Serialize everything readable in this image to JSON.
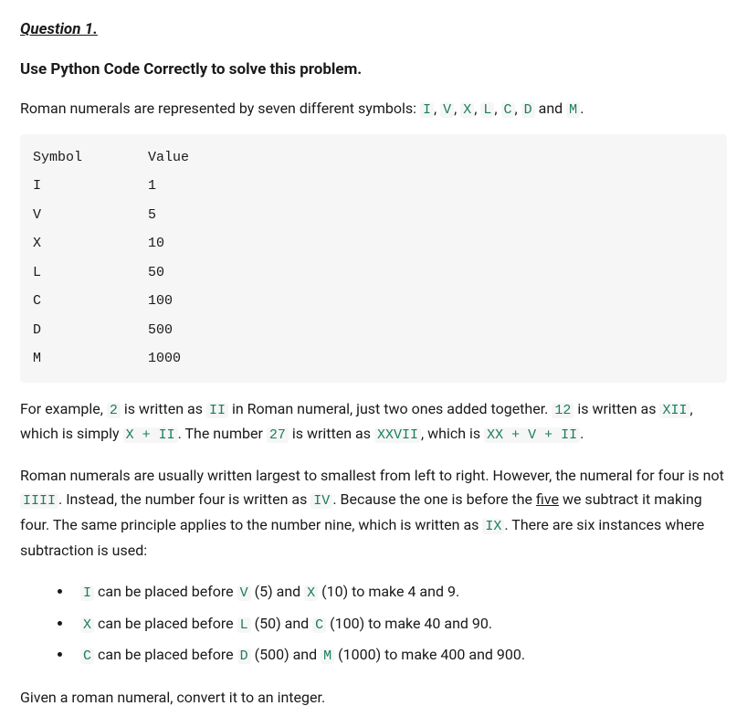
{
  "question_label": "Question 1.",
  "subtitle": "Use Python Code Correctly to solve this problem.",
  "intro_pre": "Roman numerals are represented by seven different symbols: ",
  "intro_symbols": [
    "I",
    "V",
    "X",
    "L",
    "C",
    "D",
    "M"
  ],
  "intro_sep_comma": ", ",
  "intro_and": " and ",
  "intro_post": ".",
  "table": {
    "header_symbol": "Symbol",
    "header_value": "Value",
    "rows": [
      {
        "sym": "I",
        "val": "1"
      },
      {
        "sym": "V",
        "val": "5"
      },
      {
        "sym": "X",
        "val": "10"
      },
      {
        "sym": "L",
        "val": "50"
      },
      {
        "sym": "C",
        "val": "100"
      },
      {
        "sym": "D",
        "val": "500"
      },
      {
        "sym": "M",
        "val": "1000"
      }
    ],
    "col1_width": 14
  },
  "p1": {
    "t0": "For example, ",
    "c0": "2",
    "t1": " is written as ",
    "c1": "II",
    "t2": " in Roman numeral, just two ones added together. ",
    "c2": "12",
    "t3": " is written as ",
    "c3": "XII",
    "t4": ", which is simply ",
    "c4": "X + II",
    "t5": ". The number ",
    "c5": "27",
    "t6": " is written as ",
    "c6": "XXVII",
    "t7": ", which is ",
    "c7": "XX + V + II",
    "t8": "."
  },
  "p2": {
    "t0": "Roman numerals are usually written largest to smallest from left to right. However, the numeral for four is not ",
    "c0": "IIII",
    "t1": ". Instead, the number four is written as ",
    "c1": "IV",
    "t2": ". Because the one is before the ",
    "u0": "five",
    "t3": " we subtract it making four. The same principle applies to the number nine, which is written as ",
    "c2": "IX",
    "t4": ". There are six instances where subtraction is used:"
  },
  "bullets": [
    {
      "a": "I",
      "t0": " can be placed before ",
      "b": "V",
      "t1": " (5) and ",
      "c": "X",
      "t2": " (10) to make 4 and 9."
    },
    {
      "a": "X",
      "t0": " can be placed before ",
      "b": "L",
      "t1": " (50) and ",
      "c": "C",
      "t2": " (100) to make 40 and 90."
    },
    {
      "a": "C",
      "t0": " can be placed before ",
      "b": "D",
      "t1": " (500) and ",
      "c": "M",
      "t2": " (1000) to make 400 and 900."
    }
  ],
  "final": "Given a roman numeral, convert it to an integer.",
  "style": {
    "code_bg": "#f6f6f6",
    "code_color": "#1a7f5a",
    "text_color": "#1a1a1a",
    "font_size_body": 16,
    "font_size_code": 15
  }
}
